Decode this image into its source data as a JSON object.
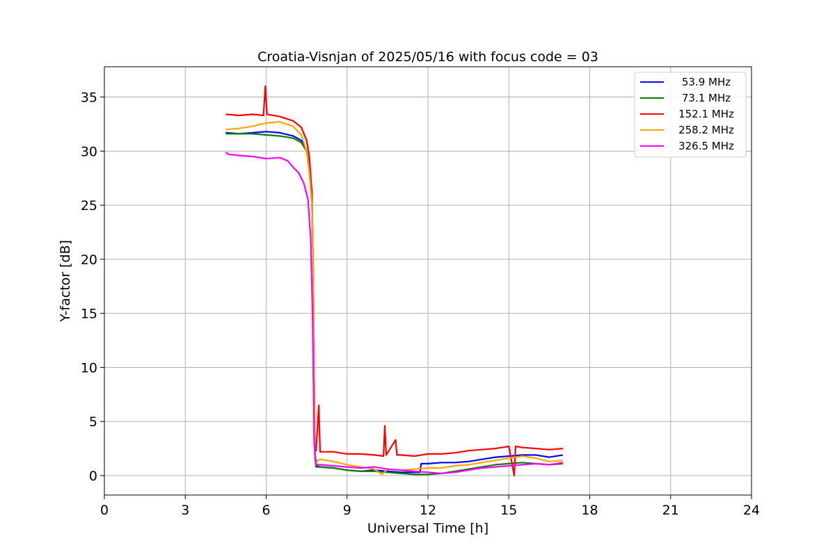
{
  "chart_data": {
    "type": "line",
    "title": "Croatia-Visnjan of 2025/05/16 with focus code = 03",
    "xlabel": "Universal Time [h]",
    "ylabel": "Y-factor [dB]",
    "xlim": [
      0,
      24
    ],
    "ylim": [
      -1.8,
      37.8
    ],
    "xticks": [
      0,
      3,
      6,
      9,
      12,
      15,
      18,
      21,
      24
    ],
    "yticks": [
      0,
      5,
      10,
      15,
      20,
      25,
      30,
      35
    ],
    "grid": true,
    "legend_position": "top-right",
    "series": [
      {
        "name": "53.9 MHz",
        "color": "#0000ff",
        "points": [
          [
            4.5,
            31.7
          ],
          [
            5.0,
            31.6
          ],
          [
            5.5,
            31.7
          ],
          [
            6.0,
            31.8
          ],
          [
            6.5,
            31.7
          ],
          [
            7.0,
            31.4
          ],
          [
            7.3,
            31.0
          ],
          [
            7.5,
            30.0
          ],
          [
            7.6,
            28.5
          ],
          [
            7.7,
            25.0
          ],
          [
            7.75,
            18.0
          ],
          [
            7.8,
            2.0
          ],
          [
            7.85,
            0.9
          ],
          [
            8.0,
            0.8
          ],
          [
            8.5,
            0.7
          ],
          [
            9.0,
            0.5
          ],
          [
            9.5,
            0.4
          ],
          [
            10.0,
            0.5
          ],
          [
            10.5,
            0.4
          ],
          [
            11.0,
            0.3
          ],
          [
            11.5,
            0.3
          ],
          [
            11.7,
            0.3
          ],
          [
            11.75,
            1.1
          ],
          [
            12.0,
            1.1
          ],
          [
            12.5,
            1.2
          ],
          [
            13.0,
            1.2
          ],
          [
            13.5,
            1.3
          ],
          [
            14.0,
            1.5
          ],
          [
            14.5,
            1.7
          ],
          [
            15.0,
            1.8
          ],
          [
            15.5,
            1.9
          ],
          [
            16.0,
            1.9
          ],
          [
            16.5,
            1.7
          ],
          [
            17.0,
            1.9
          ]
        ]
      },
      {
        "name": "73.1 MHz",
        "color": "#008000",
        "points": [
          [
            4.5,
            31.6
          ],
          [
            5.0,
            31.6
          ],
          [
            5.5,
            31.6
          ],
          [
            6.0,
            31.5
          ],
          [
            6.5,
            31.4
          ],
          [
            7.0,
            31.2
          ],
          [
            7.3,
            30.8
          ],
          [
            7.5,
            30.0
          ],
          [
            7.6,
            28.5
          ],
          [
            7.7,
            25.0
          ],
          [
            7.75,
            18.0
          ],
          [
            7.8,
            2.0
          ],
          [
            7.85,
            0.8
          ],
          [
            8.0,
            0.8
          ],
          [
            8.5,
            0.7
          ],
          [
            9.0,
            0.5
          ],
          [
            9.5,
            0.4
          ],
          [
            10.0,
            0.4
          ],
          [
            10.5,
            0.3
          ],
          [
            11.0,
            0.2
          ],
          [
            11.5,
            0.1
          ],
          [
            12.0,
            0.1
          ],
          [
            12.5,
            0.2
          ],
          [
            13.0,
            0.4
          ],
          [
            13.5,
            0.6
          ],
          [
            14.0,
            0.8
          ],
          [
            14.5,
            1.0
          ],
          [
            15.0,
            1.1
          ],
          [
            15.5,
            1.2
          ],
          [
            16.0,
            1.1
          ],
          [
            16.5,
            1.0
          ],
          [
            17.0,
            1.1
          ]
        ]
      },
      {
        "name": "152.1 MHz",
        "color": "#ff0000",
        "points": [
          [
            4.5,
            33.4
          ],
          [
            5.0,
            33.3
          ],
          [
            5.5,
            33.4
          ],
          [
            5.9,
            33.3
          ],
          [
            5.97,
            36.0
          ],
          [
            6.03,
            33.4
          ],
          [
            6.5,
            33.2
          ],
          [
            7.0,
            32.8
          ],
          [
            7.3,
            32.2
          ],
          [
            7.5,
            31.0
          ],
          [
            7.6,
            29.5
          ],
          [
            7.7,
            26.0
          ],
          [
            7.75,
            18.0
          ],
          [
            7.8,
            3.0
          ],
          [
            7.85,
            2.3
          ],
          [
            7.95,
            6.5
          ],
          [
            8.0,
            2.2
          ],
          [
            8.5,
            2.2
          ],
          [
            9.0,
            2.0
          ],
          [
            9.5,
            2.0
          ],
          [
            10.0,
            1.9
          ],
          [
            10.35,
            1.8
          ],
          [
            10.4,
            4.6
          ],
          [
            10.45,
            1.9
          ],
          [
            10.8,
            3.3
          ],
          [
            10.85,
            1.9
          ],
          [
            11.0,
            1.9
          ],
          [
            11.5,
            1.8
          ],
          [
            12.0,
            2.0
          ],
          [
            12.5,
            2.0
          ],
          [
            13.0,
            2.1
          ],
          [
            13.5,
            2.3
          ],
          [
            14.0,
            2.4
          ],
          [
            14.5,
            2.5
          ],
          [
            15.0,
            2.7
          ],
          [
            15.2,
            0.0
          ],
          [
            15.25,
            2.7
          ],
          [
            15.5,
            2.6
          ],
          [
            16.0,
            2.5
          ],
          [
            16.5,
            2.4
          ],
          [
            17.0,
            2.5
          ]
        ]
      },
      {
        "name": "258.2 MHz",
        "color": "#ffa500",
        "points": [
          [
            4.5,
            32.0
          ],
          [
            5.0,
            32.1
          ],
          [
            5.5,
            32.3
          ],
          [
            6.0,
            32.6
          ],
          [
            6.5,
            32.7
          ],
          [
            7.0,
            32.3
          ],
          [
            7.3,
            31.5
          ],
          [
            7.5,
            30.0
          ],
          [
            7.6,
            28.0
          ],
          [
            7.7,
            25.0
          ],
          [
            7.75,
            18.0
          ],
          [
            7.8,
            2.0
          ],
          [
            7.85,
            1.3
          ],
          [
            8.0,
            1.5
          ],
          [
            8.5,
            1.3
          ],
          [
            9.0,
            1.0
          ],
          [
            9.5,
            0.8
          ],
          [
            10.0,
            0.6
          ],
          [
            10.3,
            0.1
          ],
          [
            10.5,
            0.6
          ],
          [
            11.0,
            0.5
          ],
          [
            11.5,
            0.6
          ],
          [
            12.0,
            0.7
          ],
          [
            12.5,
            0.7
          ],
          [
            13.0,
            0.9
          ],
          [
            13.5,
            1.0
          ],
          [
            14.0,
            1.2
          ],
          [
            14.5,
            1.4
          ],
          [
            15.0,
            1.6
          ],
          [
            15.5,
            1.8
          ],
          [
            16.0,
            1.6
          ],
          [
            16.5,
            1.3
          ],
          [
            17.0,
            1.4
          ]
        ]
      },
      {
        "name": "326.5 MHz",
        "color": "#ff00ff",
        "points": [
          [
            4.5,
            29.9
          ],
          [
            4.6,
            29.7
          ],
          [
            5.0,
            29.6
          ],
          [
            5.5,
            29.5
          ],
          [
            6.0,
            29.3
          ],
          [
            6.5,
            29.4
          ],
          [
            6.8,
            29.1
          ],
          [
            7.0,
            28.5
          ],
          [
            7.2,
            28.0
          ],
          [
            7.4,
            27.0
          ],
          [
            7.55,
            25.5
          ],
          [
            7.65,
            22.0
          ],
          [
            7.72,
            15.0
          ],
          [
            7.78,
            3.0
          ],
          [
            7.85,
            1.0
          ],
          [
            8.0,
            1.0
          ],
          [
            8.5,
            0.9
          ],
          [
            9.0,
            0.8
          ],
          [
            9.5,
            0.7
          ],
          [
            10.0,
            0.8
          ],
          [
            10.5,
            0.6
          ],
          [
            11.0,
            0.5
          ],
          [
            11.5,
            0.4
          ],
          [
            12.0,
            0.3
          ],
          [
            12.5,
            0.2
          ],
          [
            13.0,
            0.3
          ],
          [
            13.5,
            0.5
          ],
          [
            14.0,
            0.7
          ],
          [
            14.5,
            0.8
          ],
          [
            15.0,
            0.9
          ],
          [
            15.5,
            1.0
          ],
          [
            16.0,
            1.1
          ],
          [
            16.5,
            1.0
          ],
          [
            17.0,
            1.2
          ]
        ]
      }
    ]
  }
}
